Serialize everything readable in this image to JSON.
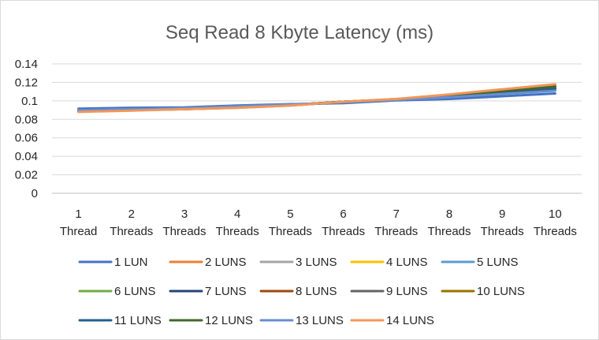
{
  "chart_data": {
    "type": "line",
    "title": "Seq Read 8 Kbyte Latency (ms)",
    "xlabel": "",
    "ylabel": "",
    "categories": [
      [
        "1",
        "Thread"
      ],
      [
        "2",
        "Threads"
      ],
      [
        "3",
        "Threads"
      ],
      [
        "4",
        "Threads"
      ],
      [
        "5",
        "Threads"
      ],
      [
        "6",
        "Threads"
      ],
      [
        "7",
        "Threads"
      ],
      [
        "8",
        "Threads"
      ],
      [
        "9",
        "Threads"
      ],
      [
        "10",
        "Threads"
      ]
    ],
    "ylim": [
      0,
      0.14
    ],
    "yticks": [
      "0",
      "0.02",
      "0.04",
      "0.06",
      "0.08",
      "0.1",
      "0.12",
      "0.14"
    ],
    "grid": true,
    "legend_position": "bottom",
    "series": [
      {
        "name": "1 LUN",
        "color": "#4472C4",
        "values": [
          0.0915,
          0.0925,
          0.093,
          0.095,
          0.0965,
          0.0975,
          0.1005,
          0.102,
          0.105,
          0.108
        ]
      },
      {
        "name": "2 LUNS",
        "color": "#ED7D31",
        "values": [
          0.0885,
          0.09,
          0.091,
          0.0925,
          0.095,
          0.099,
          0.102,
          0.1065,
          0.112,
          0.1175
        ]
      },
      {
        "name": "3 LUNS",
        "color": "#A5A5A5",
        "values": [
          0.089,
          0.0905,
          0.0915,
          0.093,
          0.0955,
          0.099,
          0.1015,
          0.105,
          0.1095,
          0.114
        ]
      },
      {
        "name": "4 LUNS",
        "color": "#FFC000",
        "values": [
          0.089,
          0.0905,
          0.0915,
          0.093,
          0.0955,
          0.099,
          0.1015,
          0.1055,
          0.11,
          0.115
        ]
      },
      {
        "name": "5 LUNS",
        "color": "#5B9BD5",
        "values": [
          0.09,
          0.091,
          0.092,
          0.094,
          0.096,
          0.0985,
          0.101,
          0.104,
          0.108,
          0.112
        ]
      },
      {
        "name": "6 LUNS",
        "color": "#70AD47",
        "values": [
          0.089,
          0.09,
          0.091,
          0.093,
          0.0955,
          0.099,
          0.1015,
          0.1055,
          0.1105,
          0.1155
        ]
      },
      {
        "name": "7 LUNS",
        "color": "#264478",
        "values": [
          0.0895,
          0.0905,
          0.0915,
          0.0935,
          0.0955,
          0.0985,
          0.101,
          0.1045,
          0.109,
          0.1135
        ]
      },
      {
        "name": "8 LUNS",
        "color": "#9E480E",
        "values": [
          0.089,
          0.09,
          0.0915,
          0.093,
          0.0955,
          0.099,
          0.1015,
          0.106,
          0.111,
          0.116
        ]
      },
      {
        "name": "9 LUNS",
        "color": "#636363",
        "values": [
          0.089,
          0.0905,
          0.0915,
          0.0935,
          0.0955,
          0.099,
          0.1015,
          0.105,
          0.1095,
          0.1145
        ]
      },
      {
        "name": "10 LUNS",
        "color": "#997300",
        "values": [
          0.089,
          0.09,
          0.0915,
          0.093,
          0.0955,
          0.099,
          0.1015,
          0.1055,
          0.11,
          0.115
        ]
      },
      {
        "name": "11 LUNS",
        "color": "#255E91",
        "values": [
          0.0895,
          0.0905,
          0.0915,
          0.0935,
          0.0955,
          0.0985,
          0.101,
          0.1045,
          0.1085,
          0.113
        ]
      },
      {
        "name": "12 LUNS",
        "color": "#43682B",
        "values": [
          0.089,
          0.09,
          0.091,
          0.093,
          0.0955,
          0.099,
          0.1015,
          0.1055,
          0.1105,
          0.1155
        ]
      },
      {
        "name": "13 LUNS",
        "color": "#698ED0",
        "values": [
          0.09,
          0.091,
          0.092,
          0.094,
          0.096,
          0.0985,
          0.101,
          0.104,
          0.1075,
          0.111
        ]
      },
      {
        "name": "14 LUNS",
        "color": "#F1975A",
        "values": [
          0.088,
          0.0895,
          0.091,
          0.0925,
          0.095,
          0.099,
          0.102,
          0.107,
          0.1125,
          0.118
        ]
      }
    ]
  }
}
